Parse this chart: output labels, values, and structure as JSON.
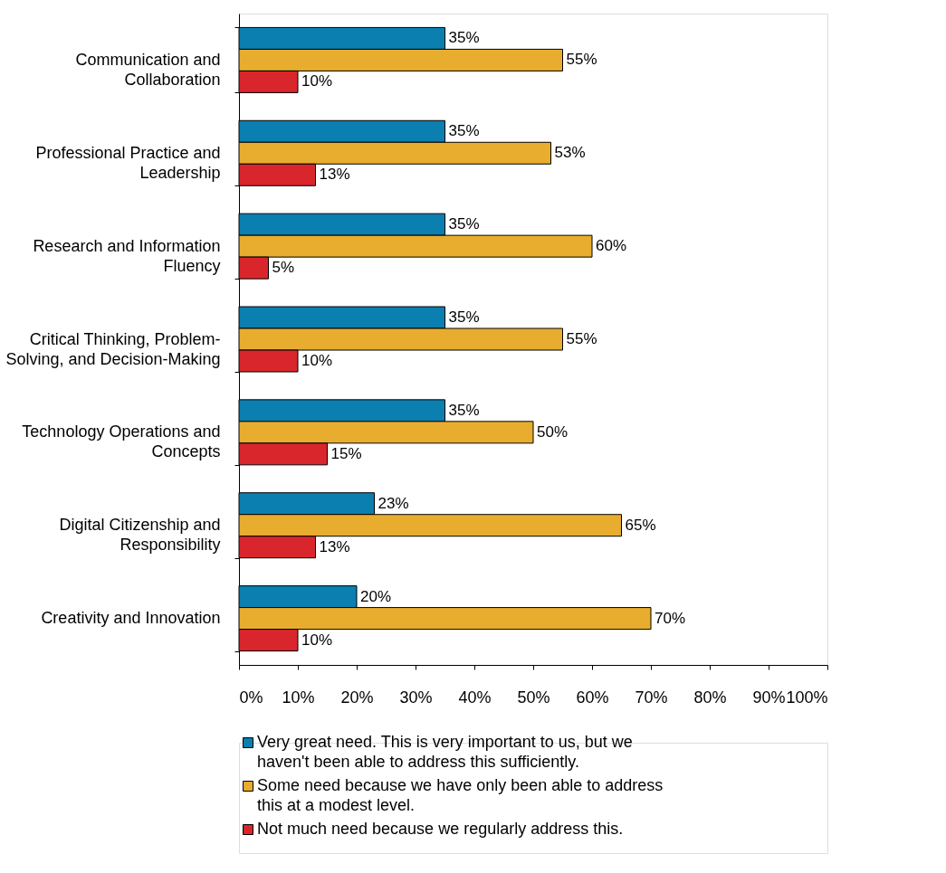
{
  "chart_data": {
    "type": "bar",
    "orientation": "horizontal",
    "categories": [
      "Communication and Collaboration",
      "Professional Practice and Leadership",
      "Research and Information Fluency",
      "Critical Thinking,  Problem-Solving, and Decision-Making",
      "Technology Operations and Concepts",
      "Digital Citizenship and Responsibility",
      "Creativity and Innovation"
    ],
    "series": [
      {
        "name": "Very great need. This is very important to us, but we haven't been able to address this sufficiently.",
        "color": "#0a7fb0",
        "values": [
          35,
          35,
          35,
          35,
          35,
          23,
          20
        ],
        "value_labels": [
          "35%",
          "35%",
          "35%",
          "35%",
          "35%",
          "23%",
          "20%"
        ]
      },
      {
        "name": "Some need because we have only been able to address this at a modest level.",
        "color": "#e8ad2e",
        "values": [
          55,
          53,
          60,
          55,
          50,
          65,
          70
        ],
        "value_labels": [
          "55%",
          "53%",
          "60%",
          "55%",
          "50%",
          "65%",
          "70%"
        ]
      },
      {
        "name": "Not much need because we regularly address this.",
        "color": "#d9262c",
        "values": [
          10,
          13,
          5,
          10,
          15,
          13,
          10
        ],
        "value_labels": [
          "10%",
          "13%",
          "5%",
          "10%",
          "15%",
          "13%",
          "10%"
        ]
      }
    ],
    "xlim": [
      0,
      100
    ],
    "xticks": [
      {
        "value": 0,
        "label": "0%"
      },
      {
        "value": 10,
        "label": "10%"
      },
      {
        "value": 20,
        "label": "20%"
      },
      {
        "value": 30,
        "label": "30%"
      },
      {
        "value": 40,
        "label": "40%"
      },
      {
        "value": 50,
        "label": "50%"
      },
      {
        "value": 60,
        "label": "60%"
      },
      {
        "value": 70,
        "label": "70%"
      },
      {
        "value": 80,
        "label": "80%"
      },
      {
        "value": 90,
        "label": "90%"
      },
      {
        "value": 100,
        "label": "100%"
      }
    ],
    "grid": false,
    "legend": "bottom"
  }
}
